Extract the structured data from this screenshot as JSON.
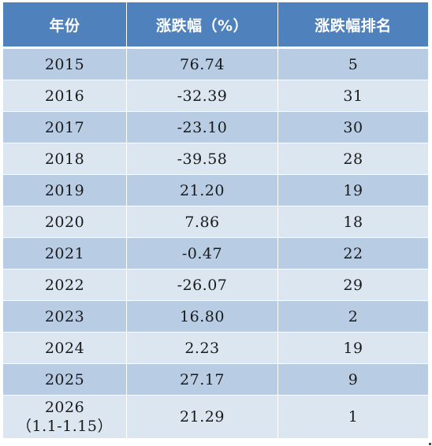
{
  "table": {
    "headers": [
      "年份",
      "涨跌幅（%）",
      "涨跌幅排名"
    ],
    "rows": [
      {
        "year": "2015",
        "change": "76.74",
        "rank": "5"
      },
      {
        "year": "2016",
        "change": "-32.39",
        "rank": "31"
      },
      {
        "year": "2017",
        "change": "-23.10",
        "rank": "30"
      },
      {
        "year": "2018",
        "change": "-39.58",
        "rank": "28"
      },
      {
        "year": "2019",
        "change": "21.20",
        "rank": "19"
      },
      {
        "year": "2020",
        "change": "7.86",
        "rank": "18"
      },
      {
        "year": "2021",
        "change": "-0.47",
        "rank": "22"
      },
      {
        "year": "2022",
        "change": "-26.07",
        "rank": "29"
      },
      {
        "year": "2023",
        "change": "16.80",
        "rank": "2"
      },
      {
        "year": "2024",
        "change": "2.23",
        "rank": "19"
      },
      {
        "year": "2025",
        "change": "27.17",
        "rank": "9"
      },
      {
        "year": "2026",
        "year_note": "（1.1-1.15）",
        "change": "21.29",
        "rank": "1"
      }
    ]
  },
  "colors": {
    "header_bg": "#4f81bd",
    "row_dark": "#b8cce4",
    "row_light": "#dce6f1"
  }
}
